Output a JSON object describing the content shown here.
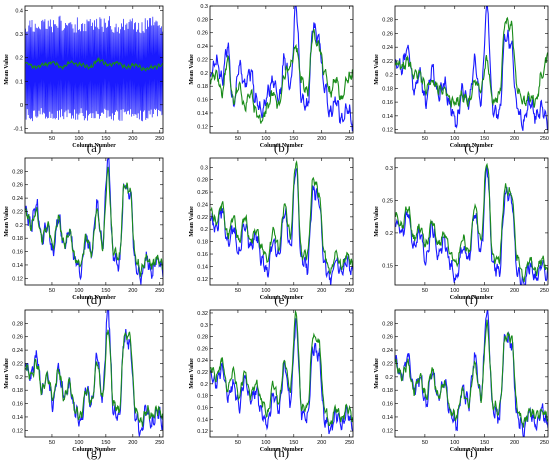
{
  "chart_data": [
    {
      "panel": "(a)",
      "type": "line",
      "xlabel": "Column Number",
      "ylabel": "Mean Value",
      "xlim": [
        0,
        256
      ],
      "ylim": [
        -0.12,
        0.42
      ],
      "xticks": [
        50,
        100,
        150,
        200,
        250
      ],
      "yticks": [
        -0.1,
        0,
        0.1,
        0.2,
        0.3,
        0.4
      ],
      "ytick_labels": [
        "-0.1",
        "0",
        "0.1",
        "0.2",
        "0.3",
        "0.4"
      ],
      "series": [
        {
          "color": "#1a1aff",
          "style": "oscillating",
          "values": [
            0.18,
            0.15,
            0.2,
            0.14,
            0.22,
            0.16,
            0.19,
            0.12,
            0.17,
            0.21,
            0.14,
            0.18,
            0.15,
            0.13,
            0.2,
            0.17
          ]
        },
        {
          "color": "#1a8c1a",
          "values": [
            0.18,
            0.16,
            0.17,
            0.18,
            0.16,
            0.18,
            0.17,
            0.16,
            0.19,
            0.17,
            0.18,
            0.16,
            0.17,
            0.15,
            0.16,
            0.17
          ]
        }
      ]
    },
    {
      "panel": "(b)",
      "type": "line",
      "xlabel": "Column Number",
      "ylabel": "Mean Value",
      "xlim": [
        0,
        256
      ],
      "ylim": [
        0.11,
        0.3
      ],
      "xticks": [
        50,
        100,
        150,
        200,
        250
      ],
      "yticks": [
        0.12,
        0.14,
        0.16,
        0.18,
        0.2,
        0.22,
        0.24,
        0.26,
        0.28,
        0.3
      ],
      "ytick_labels": [
        "0.12",
        "0.14",
        "0.16",
        "0.18",
        "0.2",
        "0.22",
        "0.24",
        "0.26",
        "0.28",
        "0.3"
      ],
      "series": [
        {
          "color": "#1a1aff",
          "values": [
            0.2,
            0.22,
            0.19,
            0.24,
            0.15,
            0.21,
            0.18,
            0.2,
            0.16,
            0.14,
            0.17,
            0.19,
            0.16,
            0.22,
            0.18,
            0.3,
            0.16,
            0.15,
            0.27,
            0.25,
            0.18,
            0.14,
            0.16,
            0.13,
            0.15,
            0.12
          ]
        },
        {
          "color": "#1a8c1a",
          "values": [
            0.19,
            0.2,
            0.17,
            0.22,
            0.16,
            0.18,
            0.15,
            0.17,
            0.14,
            0.13,
            0.15,
            0.17,
            0.15,
            0.2,
            0.21,
            0.24,
            0.19,
            0.17,
            0.26,
            0.24,
            0.2,
            0.17,
            0.19,
            0.16,
            0.19,
            0.2
          ]
        }
      ]
    },
    {
      "panel": "(c)",
      "type": "line",
      "xlabel": "Column Number",
      "ylabel": "Mean Value",
      "xlim": [
        0,
        256
      ],
      "ylim": [
        0.115,
        0.3
      ],
      "xticks": [
        50,
        100,
        150,
        200,
        250
      ],
      "yticks": [
        0.12,
        0.14,
        0.16,
        0.18,
        0.2,
        0.22,
        0.24,
        0.26,
        0.28
      ],
      "ytick_labels": [
        "0.12",
        "0.14",
        "0.16",
        "0.18",
        "0.2",
        "0.22",
        "0.24",
        "0.26",
        "0.28"
      ],
      "series": [
        {
          "color": "#1a1aff",
          "values": [
            0.22,
            0.21,
            0.24,
            0.18,
            0.2,
            0.16,
            0.21,
            0.17,
            0.19,
            0.15,
            0.13,
            0.18,
            0.16,
            0.22,
            0.16,
            0.3,
            0.15,
            0.14,
            0.26,
            0.24,
            0.15,
            0.13,
            0.16,
            0.14,
            0.15,
            0.13
          ]
        },
        {
          "color": "#1a8c1a",
          "values": [
            0.22,
            0.21,
            0.22,
            0.2,
            0.2,
            0.18,
            0.19,
            0.18,
            0.18,
            0.16,
            0.16,
            0.17,
            0.16,
            0.19,
            0.18,
            0.22,
            0.16,
            0.17,
            0.28,
            0.27,
            0.18,
            0.16,
            0.17,
            0.16,
            0.2,
            0.23
          ]
        }
      ]
    },
    {
      "panel": "(d)",
      "type": "line",
      "xlabel": "Column Number",
      "ylabel": "Mean Value",
      "xlim": [
        0,
        256
      ],
      "ylim": [
        0.11,
        0.3
      ],
      "xticks": [
        50,
        100,
        150,
        200,
        250
      ],
      "yticks": [
        0.12,
        0.14,
        0.16,
        0.18,
        0.2,
        0.22,
        0.24,
        0.26,
        0.28
      ],
      "ytick_labels": [
        "0.12",
        "0.14",
        "0.16",
        "0.18",
        "0.2",
        "0.22",
        "0.24",
        "0.26",
        "0.28"
      ],
      "series": [
        {
          "color": "#1a1aff",
          "values": [
            0.22,
            0.2,
            0.23,
            0.18,
            0.2,
            0.16,
            0.21,
            0.17,
            0.19,
            0.15,
            0.13,
            0.18,
            0.16,
            0.23,
            0.17,
            0.3,
            0.15,
            0.14,
            0.26,
            0.25,
            0.14,
            0.12,
            0.15,
            0.13,
            0.15,
            0.13
          ]
        },
        {
          "color": "#1a8c1a",
          "values": [
            0.22,
            0.2,
            0.22,
            0.18,
            0.2,
            0.17,
            0.21,
            0.17,
            0.19,
            0.15,
            0.14,
            0.18,
            0.16,
            0.22,
            0.17,
            0.28,
            0.16,
            0.15,
            0.26,
            0.25,
            0.15,
            0.13,
            0.15,
            0.14,
            0.15,
            0.14
          ]
        }
      ]
    },
    {
      "panel": "(e)",
      "type": "line",
      "xlabel": "Column Number",
      "ylabel": "Mean Value",
      "xlim": [
        0,
        256
      ],
      "ylim": [
        0.11,
        0.315
      ],
      "xticks": [
        50,
        100,
        150,
        200,
        250
      ],
      "yticks": [
        0.12,
        0.14,
        0.16,
        0.18,
        0.2,
        0.22,
        0.24,
        0.26,
        0.28,
        0.3
      ],
      "ytick_labels": [
        "0.12",
        "0.14",
        "0.16",
        "0.18",
        "0.2",
        "0.22",
        "0.24",
        "0.26",
        "0.28",
        "0.3"
      ],
      "series": [
        {
          "color": "#1a1aff",
          "values": [
            0.22,
            0.2,
            0.23,
            0.18,
            0.2,
            0.16,
            0.21,
            0.17,
            0.19,
            0.15,
            0.13,
            0.18,
            0.16,
            0.23,
            0.17,
            0.3,
            0.15,
            0.14,
            0.26,
            0.25,
            0.14,
            0.12,
            0.15,
            0.13,
            0.15,
            0.13
          ]
        },
        {
          "color": "#1a8c1a",
          "values": [
            0.23,
            0.21,
            0.24,
            0.19,
            0.22,
            0.18,
            0.22,
            0.18,
            0.2,
            0.17,
            0.15,
            0.2,
            0.17,
            0.24,
            0.19,
            0.31,
            0.16,
            0.16,
            0.28,
            0.26,
            0.16,
            0.13,
            0.16,
            0.14,
            0.16,
            0.14
          ]
        }
      ]
    },
    {
      "panel": "(f)",
      "type": "line",
      "xlabel": "Column Number",
      "ylabel": "Mean Value",
      "xlim": [
        0,
        256
      ],
      "ylim": [
        0.12,
        0.315
      ],
      "xticks": [
        50,
        100,
        150,
        200,
        250
      ],
      "yticks": [
        0.15,
        0.2,
        0.25,
        0.3
      ],
      "ytick_labels": [
        "0.15",
        "0.2",
        "0.25",
        "0.3"
      ],
      "series": [
        {
          "color": "#1a1aff",
          "values": [
            0.22,
            0.2,
            0.23,
            0.18,
            0.2,
            0.16,
            0.21,
            0.17,
            0.19,
            0.15,
            0.13,
            0.18,
            0.16,
            0.23,
            0.17,
            0.3,
            0.15,
            0.14,
            0.26,
            0.25,
            0.14,
            0.12,
            0.15,
            0.13,
            0.15,
            0.13
          ]
        },
        {
          "color": "#1a8c1a",
          "values": [
            0.23,
            0.21,
            0.24,
            0.19,
            0.21,
            0.18,
            0.22,
            0.18,
            0.2,
            0.17,
            0.15,
            0.19,
            0.17,
            0.24,
            0.19,
            0.31,
            0.16,
            0.16,
            0.27,
            0.26,
            0.16,
            0.13,
            0.16,
            0.14,
            0.16,
            0.14
          ]
        }
      ]
    },
    {
      "panel": "(g)",
      "type": "line",
      "xlabel": "Column Number",
      "ylabel": "Mean Value",
      "xlim": [
        0,
        256
      ],
      "ylim": [
        0.11,
        0.3
      ],
      "xticks": [
        50,
        100,
        150,
        200,
        250
      ],
      "yticks": [
        0.12,
        0.14,
        0.16,
        0.18,
        0.2,
        0.22,
        0.24,
        0.26,
        0.28
      ],
      "ytick_labels": [
        "0.12",
        "0.14",
        "0.16",
        "0.18",
        "0.2",
        "0.22",
        "0.24",
        "0.26",
        "0.28"
      ],
      "series": [
        {
          "color": "#1a1aff",
          "values": [
            0.22,
            0.2,
            0.23,
            0.18,
            0.2,
            0.16,
            0.21,
            0.17,
            0.19,
            0.15,
            0.13,
            0.18,
            0.16,
            0.23,
            0.17,
            0.3,
            0.15,
            0.14,
            0.26,
            0.25,
            0.14,
            0.12,
            0.15,
            0.13,
            0.15,
            0.13
          ]
        },
        {
          "color": "#1a8c1a",
          "values": [
            0.22,
            0.2,
            0.22,
            0.18,
            0.2,
            0.17,
            0.21,
            0.17,
            0.19,
            0.15,
            0.14,
            0.18,
            0.16,
            0.22,
            0.17,
            0.27,
            0.16,
            0.15,
            0.26,
            0.26,
            0.15,
            0.13,
            0.15,
            0.14,
            0.15,
            0.14
          ]
        }
      ]
    },
    {
      "panel": "(h)",
      "type": "line",
      "xlabel": "Column Number",
      "ylabel": "Mean Value",
      "xlim": [
        0,
        256
      ],
      "ylim": [
        0.11,
        0.325
      ],
      "xticks": [
        50,
        100,
        150,
        200,
        250
      ],
      "yticks": [
        0.12,
        0.14,
        0.16,
        0.18,
        0.2,
        0.22,
        0.24,
        0.26,
        0.28,
        0.3,
        0.32
      ],
      "ytick_labels": [
        "0.12",
        "0.14",
        "0.16",
        "0.18",
        "0.2",
        "0.22",
        "0.24",
        "0.26",
        "0.28",
        "0.3",
        "0.32"
      ],
      "series": [
        {
          "color": "#1a1aff",
          "values": [
            0.22,
            0.2,
            0.23,
            0.18,
            0.2,
            0.16,
            0.21,
            0.17,
            0.19,
            0.15,
            0.13,
            0.18,
            0.16,
            0.23,
            0.17,
            0.3,
            0.15,
            0.14,
            0.26,
            0.25,
            0.14,
            0.12,
            0.15,
            0.13,
            0.15,
            0.13
          ]
        },
        {
          "color": "#1a8c1a",
          "values": [
            0.23,
            0.21,
            0.24,
            0.19,
            0.22,
            0.18,
            0.22,
            0.18,
            0.2,
            0.17,
            0.15,
            0.2,
            0.17,
            0.24,
            0.19,
            0.32,
            0.16,
            0.16,
            0.28,
            0.27,
            0.16,
            0.13,
            0.16,
            0.14,
            0.16,
            0.14
          ]
        }
      ]
    },
    {
      "panel": "(i)",
      "type": "line",
      "xlabel": "Column Number",
      "ylabel": "Mean Value",
      "xlim": [
        0,
        256
      ],
      "ylim": [
        0.11,
        0.3
      ],
      "xticks": [
        50,
        100,
        150,
        200,
        250
      ],
      "yticks": [
        0.12,
        0.14,
        0.16,
        0.18,
        0.2,
        0.22,
        0.24,
        0.26,
        0.28
      ],
      "ytick_labels": [
        "0.12",
        "0.14",
        "0.16",
        "0.18",
        "0.2",
        "0.22",
        "0.24",
        "0.26",
        "0.28"
      ],
      "series": [
        {
          "color": "#1a1aff",
          "values": [
            0.22,
            0.2,
            0.23,
            0.18,
            0.2,
            0.16,
            0.21,
            0.17,
            0.19,
            0.15,
            0.13,
            0.18,
            0.16,
            0.23,
            0.17,
            0.3,
            0.15,
            0.14,
            0.26,
            0.25,
            0.14,
            0.12,
            0.15,
            0.13,
            0.15,
            0.13
          ]
        },
        {
          "color": "#1a8c1a",
          "values": [
            0.22,
            0.2,
            0.22,
            0.18,
            0.2,
            0.17,
            0.21,
            0.17,
            0.19,
            0.15,
            0.14,
            0.18,
            0.16,
            0.22,
            0.17,
            0.28,
            0.16,
            0.15,
            0.26,
            0.26,
            0.15,
            0.13,
            0.15,
            0.14,
            0.15,
            0.14
          ]
        }
      ]
    }
  ]
}
